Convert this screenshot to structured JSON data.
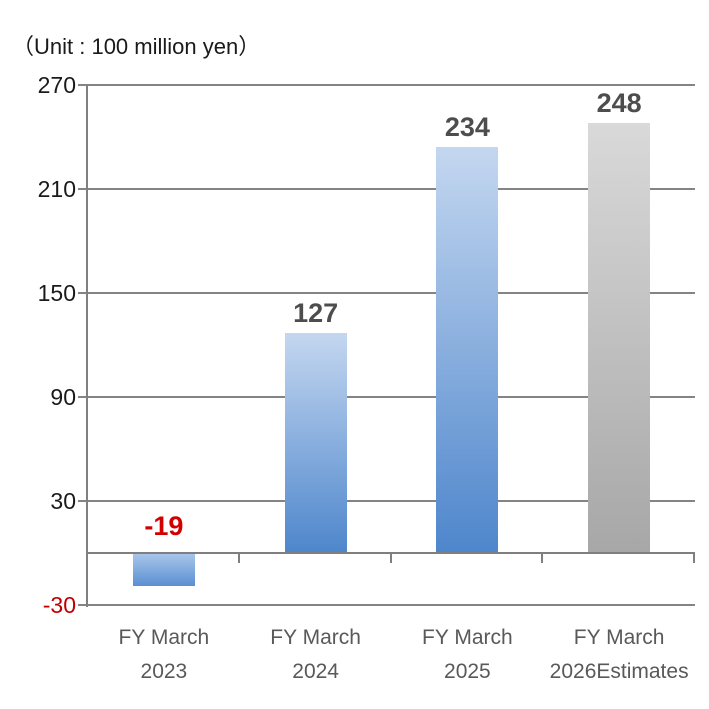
{
  "unit_note": "（Unit : 100 million yen）",
  "chart_data": {
    "type": "bar",
    "title": "",
    "unit": "（Unit : 100 million yen）",
    "categories": [
      [
        "FY March",
        "2023"
      ],
      [
        "FY March",
        "2024"
      ],
      [
        "FY March",
        "2025"
      ],
      [
        "FY March",
        "2026Estimates"
      ]
    ],
    "values": [
      -19,
      127,
      234,
      248
    ],
    "value_labels": [
      "-19",
      "127",
      "234",
      "248"
    ],
    "value_label_colors": [
      "#d20000",
      "#4d4d4d",
      "#4d4d4d",
      "#4d4d4d"
    ],
    "bar_gradients": [
      [
        "#aac7ea",
        "#5a8fd3"
      ],
      [
        "#c4d7f0",
        "#4e86cc"
      ],
      [
        "#c4d7f0",
        "#4e86cc"
      ],
      [
        "#d9d9d9",
        "#a7a7a7"
      ]
    ],
    "ylim": [
      -30,
      270
    ],
    "yticks": [
      270,
      210,
      150,
      90,
      30,
      -30
    ],
    "ytick_labels": [
      "270",
      "210",
      "150",
      "90",
      "30",
      "-30"
    ],
    "ytick_colors": [
      "#1a1a1a",
      "#1a1a1a",
      "#1a1a1a",
      "#1a1a1a",
      "#1a1a1a",
      "#c00000"
    ],
    "baseline": 0,
    "grid": true,
    "legend": null,
    "xlabel": "",
    "ylabel": ""
  },
  "colors": {
    "gridline": "#848484",
    "axis": "#808080",
    "value_label_gray": "#4d4d4d",
    "category_label": "#595959",
    "negative_red": "#d20000",
    "tick_red": "#c00000"
  }
}
